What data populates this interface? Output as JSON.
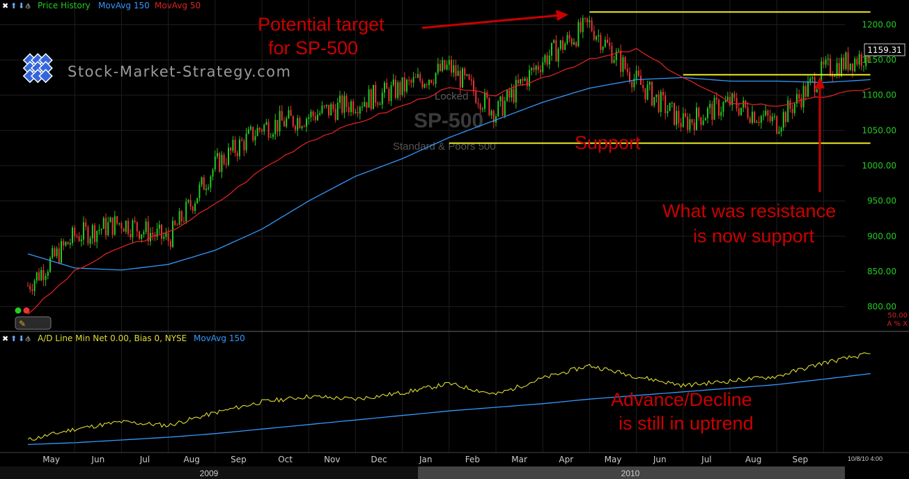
{
  "price_panel": {
    "legend": [
      {
        "label": "Price History",
        "color": "#22cc22"
      },
      {
        "label": "MovAvg 150",
        "color": "#3399ff"
      },
      {
        "label": "MovAvg 50",
        "color": "#dd2222"
      }
    ],
    "watermark_site": "Stock-Market-Strategy.com",
    "watermark_symbol": "SP-500",
    "watermark_name": "Standard & Poors 500",
    "watermark_locked": "Locked",
    "last_price_label": "1159.31",
    "small_scale_label": "50.00",
    "small_scale_buttons": "A % X"
  },
  "ad_panel": {
    "legend": [
      {
        "label": "A/D Line Min Net 0.00, Bias 0, NYSE",
        "color": "#dddd33"
      },
      {
        "label": "MovAvg 150",
        "color": "#3399ff"
      }
    ]
  },
  "annotations": {
    "target_line1": "Potential target",
    "target_line2": "for SP-500",
    "support": "Support",
    "resistance_line1": "What was resistance",
    "resistance_line2": "is now support",
    "ad_line1": "Advance/Decline",
    "ad_line2": "is still in uptrend"
  },
  "x_axis": {
    "months": [
      "May",
      "Jun",
      "Jul",
      "Aug",
      "Sep",
      "Oct",
      "Nov",
      "Dec",
      "Jan",
      "Feb",
      "Mar",
      "Apr",
      "May",
      "Jun",
      "Jul",
      "Aug",
      "Sep"
    ],
    "years": [
      "2009",
      "2010"
    ],
    "timestamp": "10/8/10 4:00"
  },
  "chart_data": [
    {
      "type": "candlestick",
      "series": [
        {
          "name": "Price History",
          "x": [
            "2009-04",
            "2009-05",
            "2009-06",
            "2009-07",
            "2009-08",
            "2009-09",
            "2009-10",
            "2009-11",
            "2009-12",
            "2010-01",
            "2010-02",
            "2010-03",
            "2010-04",
            "2010-05",
            "2010-06",
            "2010-07",
            "2010-08",
            "2010-09",
            "2010-10"
          ],
          "values": [
            830,
            900,
            920,
            895,
            1000,
            1055,
            1070,
            1090,
            1110,
            1140,
            1075,
            1150,
            1200,
            1120,
            1060,
            1090,
            1060,
            1135,
            1159
          ]
        },
        {
          "name": "MovAvg 150",
          "x": [
            "2009-04",
            "2009-05",
            "2009-06",
            "2009-07",
            "2009-08",
            "2009-09",
            "2009-10",
            "2009-11",
            "2009-12",
            "2010-01",
            "2010-02",
            "2010-03",
            "2010-04",
            "2010-05",
            "2010-06",
            "2010-07",
            "2010-08",
            "2010-09",
            "2010-10"
          ],
          "values": [
            875,
            855,
            852,
            860,
            880,
            910,
            950,
            985,
            1010,
            1040,
            1065,
            1090,
            1110,
            1122,
            1125,
            1120,
            1120,
            1118,
            1122
          ]
        },
        {
          "name": "MovAvg 50",
          "x": [
            "2009-04",
            "2009-05",
            "2009-06",
            "2009-07",
            "2009-08",
            "2009-09",
            "2009-10",
            "2009-11",
            "2009-12",
            "2010-01",
            "2010-02",
            "2010-03",
            "2010-04",
            "2010-05",
            "2010-06",
            "2010-07",
            "2010-08",
            "2010-09",
            "2010-10"
          ],
          "values": [
            790,
            850,
            885,
            905,
            945,
            995,
            1035,
            1060,
            1085,
            1110,
            1100,
            1125,
            1150,
            1165,
            1125,
            1090,
            1085,
            1098,
            1110
          ]
        }
      ],
      "ylim": [
        765,
        1235
      ],
      "yticks": [
        800,
        850,
        900,
        950,
        1000,
        1050,
        1100,
        1150,
        1200
      ],
      "levels": [
        {
          "label": "Potential target",
          "value": 1218,
          "x": [
            "2010-04",
            "2010-10"
          ]
        },
        {
          "label": "Resistance",
          "value": 1129,
          "x": [
            "2010-06",
            "2010-10"
          ]
        },
        {
          "label": "Support",
          "value": 1032,
          "x": [
            "2010-01",
            "2010-10"
          ]
        }
      ],
      "last_value": 1159.31,
      "grid": true,
      "legend": "top-left"
    },
    {
      "type": "line",
      "series": [
        {
          "name": "A/D Line Min Net 0.00, Bias 0, NYSE",
          "x": [
            "2009-04",
            "2009-05",
            "2009-06",
            "2009-07",
            "2009-08",
            "2009-09",
            "2009-10",
            "2009-11",
            "2009-12",
            "2010-01",
            "2010-02",
            "2010-03",
            "2010-04",
            "2010-05",
            "2010-06",
            "2010-07",
            "2010-08",
            "2010-09",
            "2010-10"
          ],
          "values": [
            10,
            22,
            30,
            26,
            40,
            52,
            58,
            55,
            62,
            72,
            60,
            78,
            92,
            80,
            70,
            75,
            80,
            95,
            105
          ]
        },
        {
          "name": "MovAvg 150",
          "x": [
            "2009-04",
            "2009-05",
            "2009-06",
            "2009-07",
            "2009-08",
            "2009-09",
            "2009-10",
            "2009-11",
            "2009-12",
            "2010-01",
            "2010-02",
            "2010-03",
            "2010-04",
            "2010-05",
            "2010-06",
            "2010-07",
            "2010-08",
            "2010-09",
            "2010-10"
          ],
          "values": [
            5,
            7,
            10,
            13,
            17,
            22,
            27,
            32,
            37,
            42,
            46,
            50,
            55,
            59,
            63,
            67,
            71,
            77,
            83
          ]
        }
      ],
      "ylim": [
        0,
        115
      ],
      "grid": true,
      "legend": "top-left"
    }
  ]
}
